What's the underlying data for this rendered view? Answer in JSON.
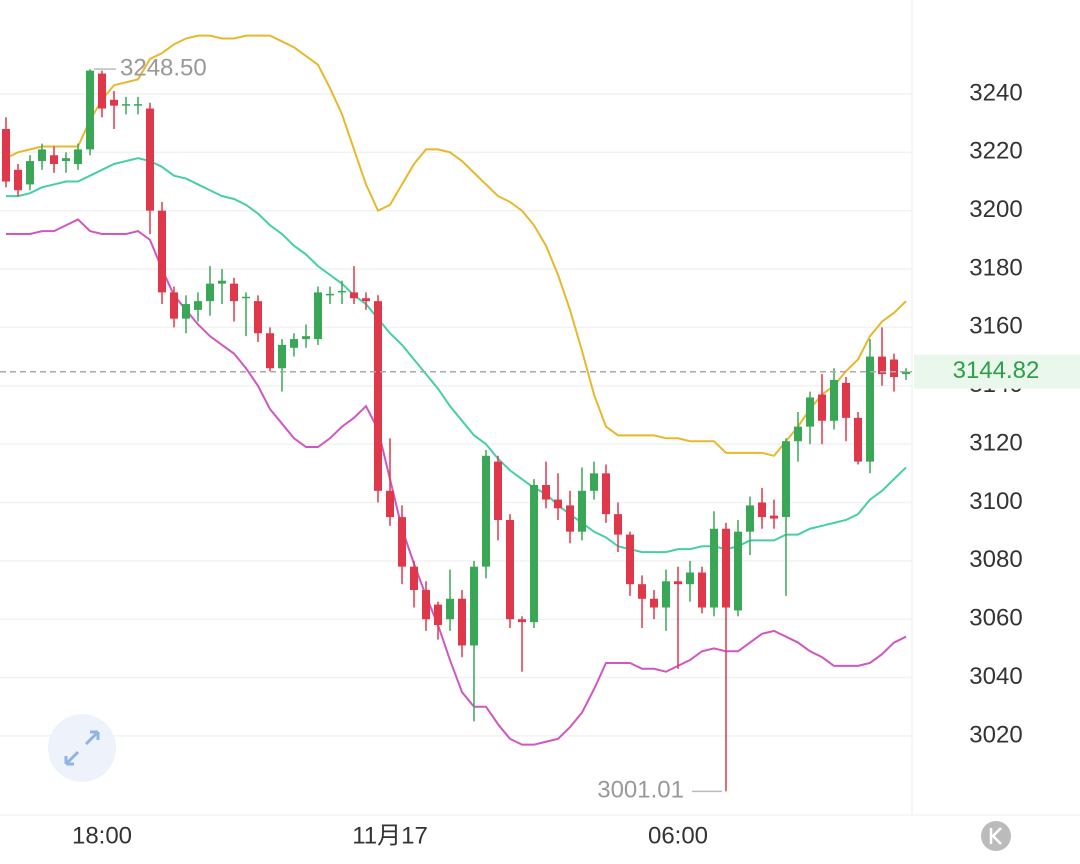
{
  "chart_data": {
    "type": "candlestick",
    "categories": [
      null,
      null,
      null,
      null,
      null,
      null,
      null,
      null,
      "18:00",
      null,
      null,
      null,
      null,
      null,
      null,
      null,
      null,
      null,
      null,
      null,
      null,
      null,
      null,
      null,
      null,
      null,
      null,
      null,
      null,
      null,
      null,
      null,
      "11月17",
      null,
      null,
      null,
      null,
      null,
      null,
      null,
      null,
      null,
      null,
      null,
      null,
      null,
      null,
      null,
      null,
      null,
      null,
      null,
      null,
      null,
      null,
      null,
      "06:00",
      null,
      null,
      null,
      null,
      null,
      null,
      null,
      null,
      null,
      null,
      null,
      null,
      null,
      null,
      null,
      null,
      null,
      null,
      null
    ],
    "open": [
      3228,
      3214,
      3209,
      3217,
      3219,
      3217,
      3216,
      3221,
      3247,
      3238,
      3236,
      3236,
      3235,
      3200,
      3172,
      3163,
      3166,
      3169,
      3175,
      3175,
      3170,
      3169,
      3158,
      3146,
      3153,
      3156,
      3156,
      3171,
      3172,
      3172,
      3170,
      3169,
      3104,
      3095,
      3078,
      3070,
      3065,
      3060,
      3067,
      3051,
      3078,
      3114,
      3094,
      3060,
      3059,
      3106,
      3101,
      3099,
      3090,
      3104,
      3110,
      3096,
      3089,
      3072,
      3067,
      3064,
      3073,
      3072,
      3076,
      3064,
      3091,
      3063,
      3090,
      3100,
      3095.5,
      3095,
      3121,
      3126,
      3137,
      3128,
      3141,
      3129,
      3114,
      3150,
      3149,
      3144
    ],
    "high": [
      3232,
      3216,
      3219,
      3223,
      3222,
      3220,
      3223,
      3248.5,
      3248,
      3241,
      3239,
      3239,
      3237,
      3203,
      3174,
      3171,
      3172,
      3181,
      3180,
      3177,
      3172,
      3171,
      3160,
      3156,
      3158,
      3161,
      3174,
      3174,
      3176,
      3181,
      3172,
      3171,
      3122,
      3099,
      3080,
      3073,
      3066,
      3077,
      3070,
      3080,
      3118,
      3116,
      3096,
      3061,
      3108,
      3114,
      3110,
      3104,
      3112,
      3114,
      3113,
      3100,
      3090,
      3075,
      3070,
      3077,
      3078,
      3080,
      3078,
      3097,
      3093,
      3094,
      3102,
      3105,
      3101,
      3122,
      3131,
      3138,
      3144,
      3146,
      3143,
      3131,
      3156,
      3160,
      3151,
      3146
    ],
    "low": [
      3208,
      3205,
      3207,
      3214,
      3213,
      3213,
      3214,
      3219,
      3232,
      3228,
      3233,
      3233,
      3192,
      3168,
      3160,
      3158,
      3162,
      3164,
      3168,
      3162,
      3157,
      3155,
      3145,
      3138,
      3150,
      3153,
      3154,
      3168,
      3168,
      3168,
      3166,
      3100,
      3092,
      3072,
      3064,
      3056,
      3053,
      3056,
      3047,
      3025,
      3074,
      3087,
      3057,
      3042,
      3057,
      3098,
      3094,
      3086,
      3087,
      3101,
      3093,
      3083,
      3068,
      3057,
      3060,
      3056,
      3043,
      3066,
      3062,
      3061,
      3001.01,
      3061,
      3082,
      3091,
      3091,
      3068,
      3114,
      3120,
      3120,
      3125,
      3121,
      3113,
      3110,
      3140,
      3138,
      3142
    ],
    "close": [
      3210,
      3207,
      3217,
      3221,
      3216,
      3218,
      3221,
      3248,
      3235,
      3236,
      3236.5,
      3236.5,
      3200,
      3172,
      3163,
      3168,
      3169,
      3175,
      3176,
      3169,
      3170.5,
      3158,
      3146,
      3154,
      3156,
      3157,
      3172,
      3171.5,
      3172.5,
      3170,
      3169,
      3104,
      3095,
      3078,
      3070,
      3060,
      3058,
      3067,
      3051,
      3078,
      3116,
      3094,
      3060,
      3059,
      3106,
      3101,
      3098,
      3090,
      3104,
      3110,
      3096,
      3089,
      3072,
      3067,
      3064,
      3073,
      3072,
      3076,
      3064,
      3091,
      3064,
      3090,
      3099,
      3095,
      3094.5,
      3121,
      3126,
      3136,
      3128,
      3142,
      3129,
      3114,
      3150,
      3144,
      3143,
      3144.82
    ],
    "up_color": "#3aa757",
    "down_color": "#e0384b",
    "bands": [
      {
        "color": "#e8b82c",
        "values": [
          3218,
          3220,
          3221,
          3222,
          3222,
          3222,
          3222,
          3231,
          3238,
          3243,
          3244,
          3245,
          3252,
          3254,
          3257,
          3259,
          3260,
          3260,
          3259,
          3259,
          3260,
          3260,
          3260,
          3258,
          3256,
          3253,
          3250,
          3242,
          3233,
          3221,
          3209,
          3200,
          3202,
          3209,
          3216,
          3221,
          3221,
          3220,
          3217,
          3213,
          3209,
          3205,
          3203,
          3200,
          3195,
          3188,
          3178,
          3166,
          3152,
          3137,
          3126,
          3123,
          3123,
          3123,
          3123,
          3122,
          3122,
          3121,
          3121,
          3121,
          3117,
          3117,
          3117,
          3117,
          3116,
          3121,
          3126,
          3132,
          3137,
          3140,
          3145,
          3149,
          3157,
          3162,
          3165,
          3169
        ]
      },
      {
        "color": "#45cfa8",
        "values": [
          3205,
          3205,
          3206,
          3208,
          3209,
          3210,
          3210,
          3212,
          3214,
          3216,
          3217,
          3218,
          3217,
          3215,
          3212,
          3211,
          3209,
          3207,
          3205,
          3204,
          3202,
          3199,
          3195,
          3192,
          3188,
          3185,
          3181,
          3178,
          3175,
          3171,
          3168,
          3163,
          3158,
          3154,
          3149,
          3144,
          3139,
          3133,
          3128,
          3123,
          3120,
          3115,
          3111,
          3108,
          3105,
          3103,
          3099,
          3096,
          3093,
          3090,
          3088,
          3085,
          3084,
          3083,
          3083,
          3083,
          3084,
          3084,
          3085,
          3085,
          3084,
          3085,
          3087,
          3087,
          3087,
          3089,
          3089,
          3091,
          3092,
          3093,
          3094,
          3096,
          3101,
          3104,
          3108,
          3112
        ]
      },
      {
        "color": "#d056c0",
        "values": [
          3192,
          3192,
          3192,
          3193,
          3193,
          3195,
          3197,
          3193,
          3192,
          3192,
          3192,
          3193,
          3190,
          3180,
          3171,
          3166,
          3161,
          3157,
          3154,
          3151,
          3146,
          3140,
          3132,
          3127,
          3122,
          3119,
          3119,
          3122,
          3126,
          3129,
          3133,
          3125,
          3108,
          3091,
          3079,
          3068,
          3058,
          3046,
          3035,
          3030,
          3030,
          3024,
          3019,
          3017,
          3017,
          3018,
          3019,
          3023,
          3028,
          3036,
          3045,
          3045,
          3045,
          3043,
          3043,
          3042,
          3044,
          3046,
          3049,
          3050,
          3049,
          3049,
          3052,
          3055,
          3056,
          3054,
          3052,
          3049,
          3047,
          3044,
          3044,
          3044,
          3045,
          3048,
          3052,
          3054
        ]
      }
    ],
    "last_price": 3144.82,
    "annotations": [
      {
        "label": "3248.50",
        "value": 3248.5
      },
      {
        "label": "3001.01",
        "value": 3001.01
      }
    ],
    "ylim": [
      2992.9,
      3272.2
    ],
    "yticks": [
      3020,
      3040,
      3060,
      3080,
      3100,
      3120,
      3140,
      3160,
      3180,
      3200,
      3220,
      3240
    ],
    "grid": true
  }
}
